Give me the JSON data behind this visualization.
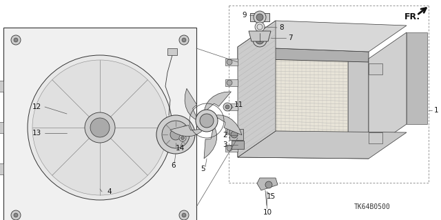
{
  "bg_color": "#ffffff",
  "fig_width": 6.4,
  "fig_height": 3.19,
  "dpi": 100,
  "diagram_code": "TK64B0500",
  "lc": "#333333",
  "lw": 0.6
}
